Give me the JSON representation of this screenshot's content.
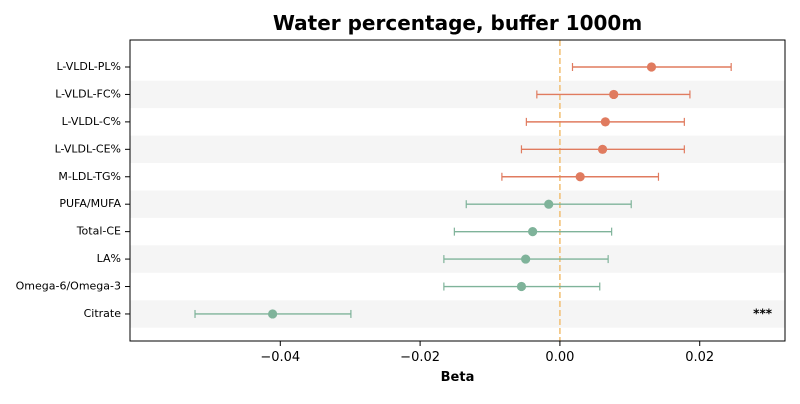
{
  "chart_data": {
    "type": "forest",
    "title": "Water percentage, buffer 1000m",
    "xlabel": "Beta",
    "ylabel": "",
    "xlim": [
      -0.0615,
      0.0322
    ],
    "xticks": [
      -0.04,
      -0.02,
      0.0,
      0.02
    ],
    "xtick_labels": [
      "−0.04",
      "−0.02",
      "0.00",
      "0.02"
    ],
    "reference_line": 0.0,
    "grid": false,
    "legend": "none",
    "colors": {
      "positive": "#E07B5F",
      "negative": "#7FB39A",
      "reference": "#F2C27A",
      "band": "#F5F5F5"
    },
    "rows": [
      {
        "label": "L-VLDL-PL%",
        "beta": 0.0131,
        "ci_low": 0.0018,
        "ci_high": 0.0245,
        "annotation": ""
      },
      {
        "label": "L-VLDL-FC%",
        "beta": 0.0077,
        "ci_low": -0.0033,
        "ci_high": 0.0186,
        "annotation": ""
      },
      {
        "label": "L-VLDL-C%",
        "beta": 0.0065,
        "ci_low": -0.0048,
        "ci_high": 0.0178,
        "annotation": ""
      },
      {
        "label": "L-VLDL-CE%",
        "beta": 0.0061,
        "ci_low": -0.0055,
        "ci_high": 0.0178,
        "annotation": ""
      },
      {
        "label": "M-LDL-TG%",
        "beta": 0.0029,
        "ci_low": -0.0083,
        "ci_high": 0.0141,
        "annotation": ""
      },
      {
        "label": "PUFA/MUFA",
        "beta": -0.0016,
        "ci_low": -0.0134,
        "ci_high": 0.0102,
        "annotation": ""
      },
      {
        "label": "Total-CE",
        "beta": -0.0039,
        "ci_low": -0.0151,
        "ci_high": 0.0074,
        "annotation": ""
      },
      {
        "label": "LA%",
        "beta": -0.0049,
        "ci_low": -0.0166,
        "ci_high": 0.0069,
        "annotation": ""
      },
      {
        "label": "Omega-6/Omega-3",
        "beta": -0.0055,
        "ci_low": -0.0166,
        "ci_high": 0.0057,
        "annotation": ""
      },
      {
        "label": "Citrate",
        "beta": -0.0411,
        "ci_low": -0.0522,
        "ci_high": -0.0299,
        "annotation": "***"
      }
    ]
  }
}
